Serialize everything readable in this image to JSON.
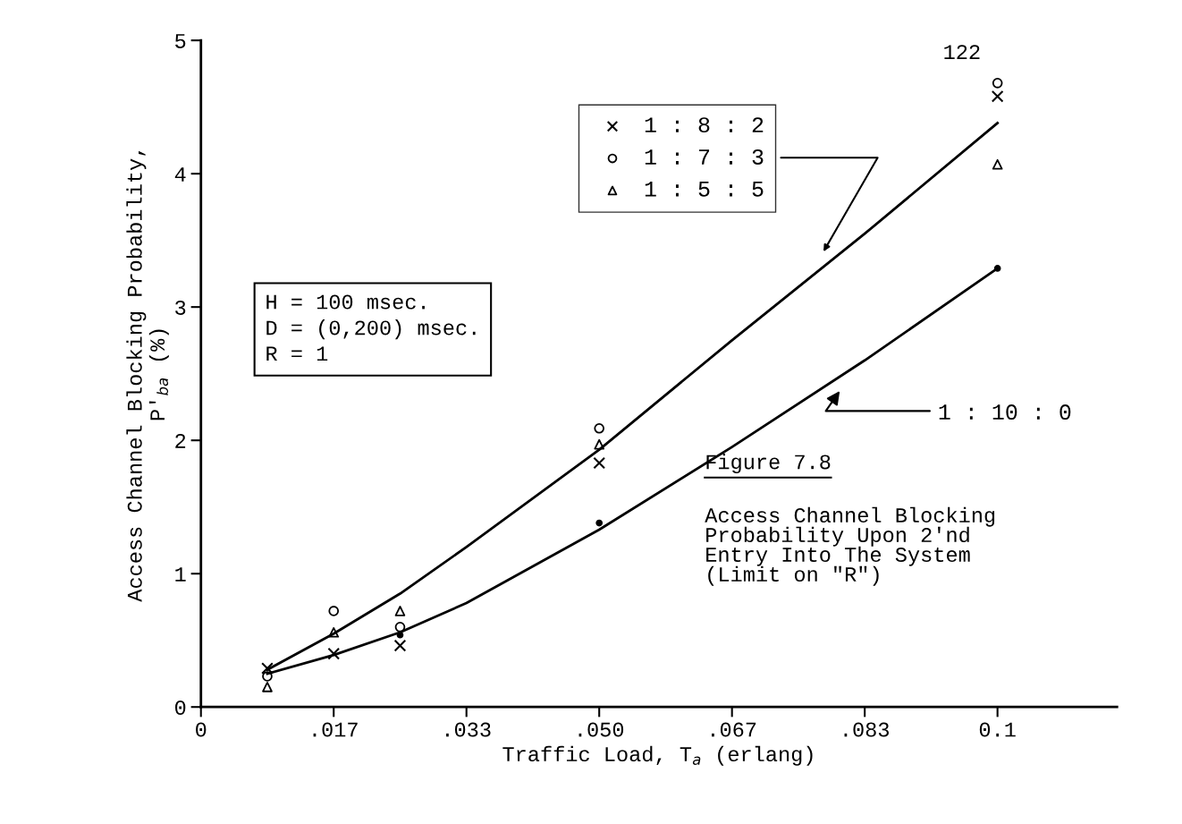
{
  "chart_data": {
    "type": "scatter",
    "xlabel": "Traffic Load, T$_{a}$ (erlang)",
    "ylabel": "Access Channel Blocking Probability,\nP′$_{ba}$ (%)",
    "xlim": [
      0,
      0.115
    ],
    "ylim": [
      0,
      5
    ],
    "xticks": [
      0,
      {
        "value": 0.016667,
        "label": ".017"
      },
      {
        "value": 0.033333,
        "label": ".033"
      },
      {
        "value": 0.05,
        "label": ".050"
      },
      {
        "value": 0.066667,
        "label": ".067"
      },
      {
        "value": 0.083333,
        "label": ".083"
      },
      {
        "value": 0.1,
        "label": "0.1"
      }
    ],
    "yticks": [
      0,
      1,
      2,
      3,
      4,
      5
    ],
    "grid": false,
    "legend": "top",
    "series": [
      {
        "name": "1 : 8 : 2",
        "color": "#000000",
        "marker": "cross",
        "x": [
          0.008333,
          0.016667,
          0.025,
          0.05,
          0.1
        ],
        "values": [
          0.29,
          0.4,
          0.46,
          1.83,
          4.58
        ]
      },
      {
        "name": "1 : 7 : 3",
        "color": "#000000",
        "marker": "circle",
        "x": [
          0.008333,
          0.016667,
          0.025,
          0.05,
          0.1
        ],
        "values": [
          0.23,
          0.72,
          0.6,
          2.09,
          4.68
        ]
      },
      {
        "name": "1 : 5 : 5",
        "color": "#000000",
        "marker": "triangle",
        "x": [
          0.008333,
          0.016667,
          0.025,
          0.05,
          0.1
        ],
        "values": [
          0.15,
          0.56,
          0.72,
          1.97,
          4.07
        ]
      },
      {
        "color": "#000000",
        "marker": "circle",
        "x": [
          0.025,
          0.05,
          0.1
        ],
        "values": [
          0.54,
          1.38,
          3.29
        ]
      },
      {
        "type": "line",
        "color": "#000000",
        "marker": "none",
        "x": [
          0.008333,
          0.016667,
          0.025,
          0.033333,
          0.05,
          0.066667,
          0.083333,
          0.1
        ],
        "values": [
          0.28,
          0.55,
          0.85,
          1.2,
          1.93,
          2.75,
          3.55,
          4.38
        ]
      },
      {
        "type": "line",
        "name": "1 : 10 : 0",
        "color": "#000000",
        "marker": "none",
        "x": [
          0.008333,
          0.016667,
          0.025,
          0.033333,
          0.05,
          0.066667,
          0.083333,
          0.1
        ],
        "values": [
          0.25,
          0.39,
          0.56,
          0.78,
          1.33,
          1.95,
          2.6,
          3.29
        ]
      }
    ],
    "annotations": [
      "H = 100 msec.\nD = (0,200) msec.\nR = 1",
      "Figure 7.8",
      "Access Channel Blocking\nProbability Upon 2'nd\nEntry Into The System\n(Limit on \"R\")",
      "122"
    ]
  }
}
